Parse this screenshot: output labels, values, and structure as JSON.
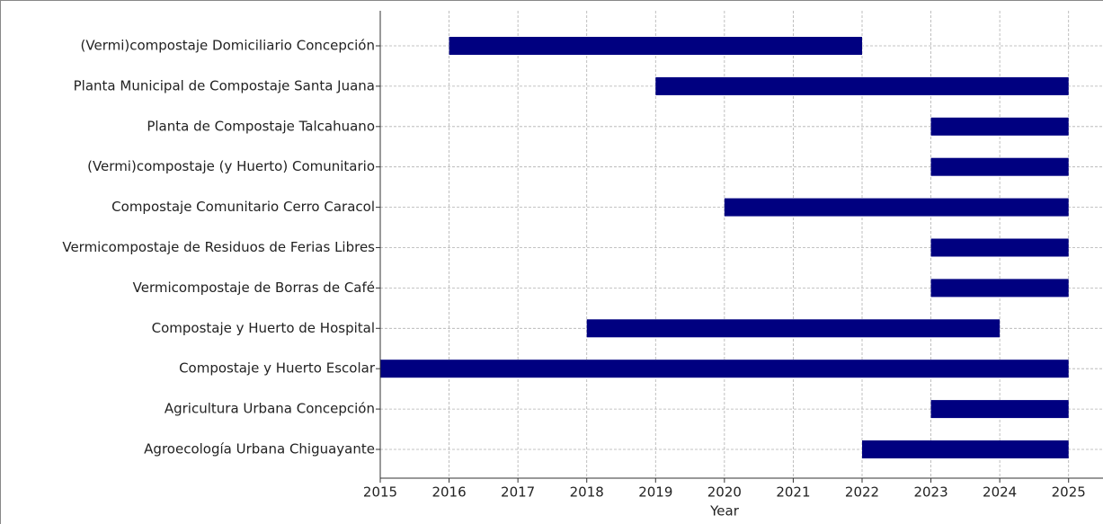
{
  "chart_data": {
    "type": "floating-barh",
    "x_label": "Year",
    "categories": [
      "(Vermi)compostaje Domiciliario Concepción",
      "Planta Municipal de Compostaje Santa Juana",
      "Planta de Compostaje Talcahuano",
      "(Vermi)compostaje (y Huerto) Comunitario",
      "Compostaje Comunitario Cerro Caracol",
      "Vermicompostaje de Residuos de Ferias Libres",
      "Vermicompostaje de Borras de Café",
      "Compostaje y Huerto de Hospital",
      "Compostaje y Huerto Escolar",
      "Agricultura Urbana Concepción",
      "Agroecología Urbana Chiguayante"
    ],
    "start": [
      2016,
      2019,
      2023,
      2023,
      2020,
      2023,
      2023,
      2018,
      2015,
      2023,
      2022
    ],
    "end": [
      2022,
      2025,
      2025,
      2025,
      2025,
      2025,
      2025,
      2024,
      2025,
      2025,
      2025
    ],
    "color": "#000080",
    "xlim": [
      2015,
      2025.5
    ],
    "xticks": [
      2015,
      2016,
      2017,
      2018,
      2019,
      2020,
      2021,
      2022,
      2023,
      2024,
      2025
    ],
    "grid": true
  }
}
